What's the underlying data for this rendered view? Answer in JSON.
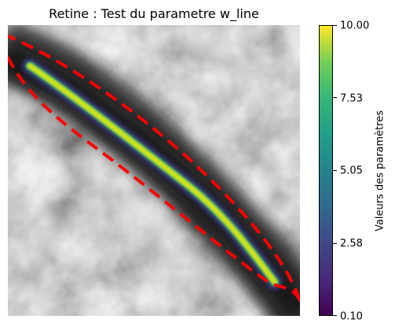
{
  "title": "Retine : Test du parametre w_line",
  "image": {
    "description_icon": "grayscale-retina-vessel-image",
    "overlay_colormap": "viridis",
    "contour_color": "#ff0000"
  },
  "colorbar": {
    "label": "Valeurs des paramètres",
    "min": 0.1,
    "max": 10.0,
    "ticks": [
      "10.00",
      "7.53",
      "5.05",
      "2.58",
      "0.10"
    ],
    "colormap": "viridis",
    "colors": [
      "#440154",
      "#3b528b",
      "#21918c",
      "#5ec962",
      "#fde725"
    ]
  }
}
